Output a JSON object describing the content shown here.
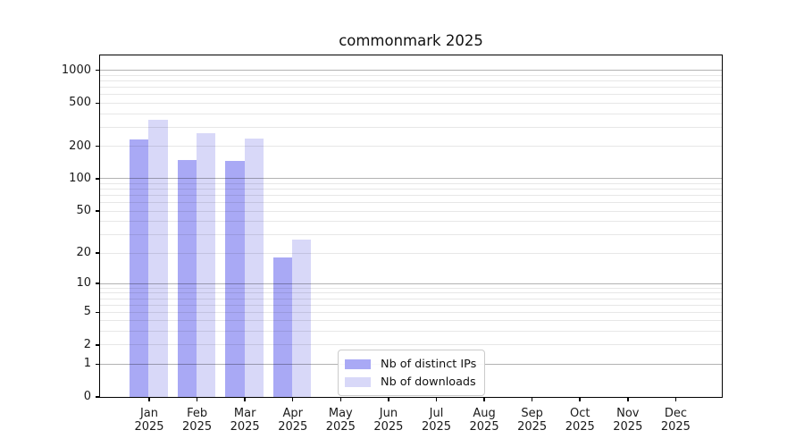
{
  "chart_data": {
    "type": "bar",
    "title": "commonmark 2025",
    "months": [
      "Jan",
      "Feb",
      "Mar",
      "Apr",
      "May",
      "Jun",
      "Jul",
      "Aug",
      "Sep",
      "Oct",
      "Nov",
      "Dec"
    ],
    "year": "2025",
    "series": [
      {
        "name": "Nb of distinct IPs",
        "color": "#a9a9f5",
        "values": [
          232,
          149,
          146,
          18,
          null,
          null,
          null,
          null,
          null,
          null,
          null,
          null
        ]
      },
      {
        "name": "Nb of downloads",
        "color": "#d8d8f8",
        "values": [
          352,
          266,
          237,
          27,
          null,
          null,
          null,
          null,
          null,
          null,
          null,
          null
        ]
      }
    ],
    "y_axis": {
      "scale": "log1p",
      "ticks": [
        0,
        1,
        2,
        5,
        10,
        20,
        50,
        100,
        200,
        500,
        1000
      ],
      "major_gridlines": [
        1,
        10,
        100,
        1000
      ],
      "minor_gridlines": [
        2,
        3,
        4,
        5,
        6,
        7,
        8,
        9,
        20,
        30,
        40,
        50,
        60,
        70,
        80,
        90,
        200,
        300,
        400,
        500,
        600,
        700,
        800,
        900
      ],
      "top": 1372
    },
    "legend": {
      "position": "inside-lower-center"
    },
    "colors": {
      "major_grid": "rgba(0,0,0,0.30)",
      "minor_grid": "rgba(0,0,0,0.095)",
      "axis": "#000000",
      "text": "#1a1a1a"
    },
    "grid": true
  }
}
